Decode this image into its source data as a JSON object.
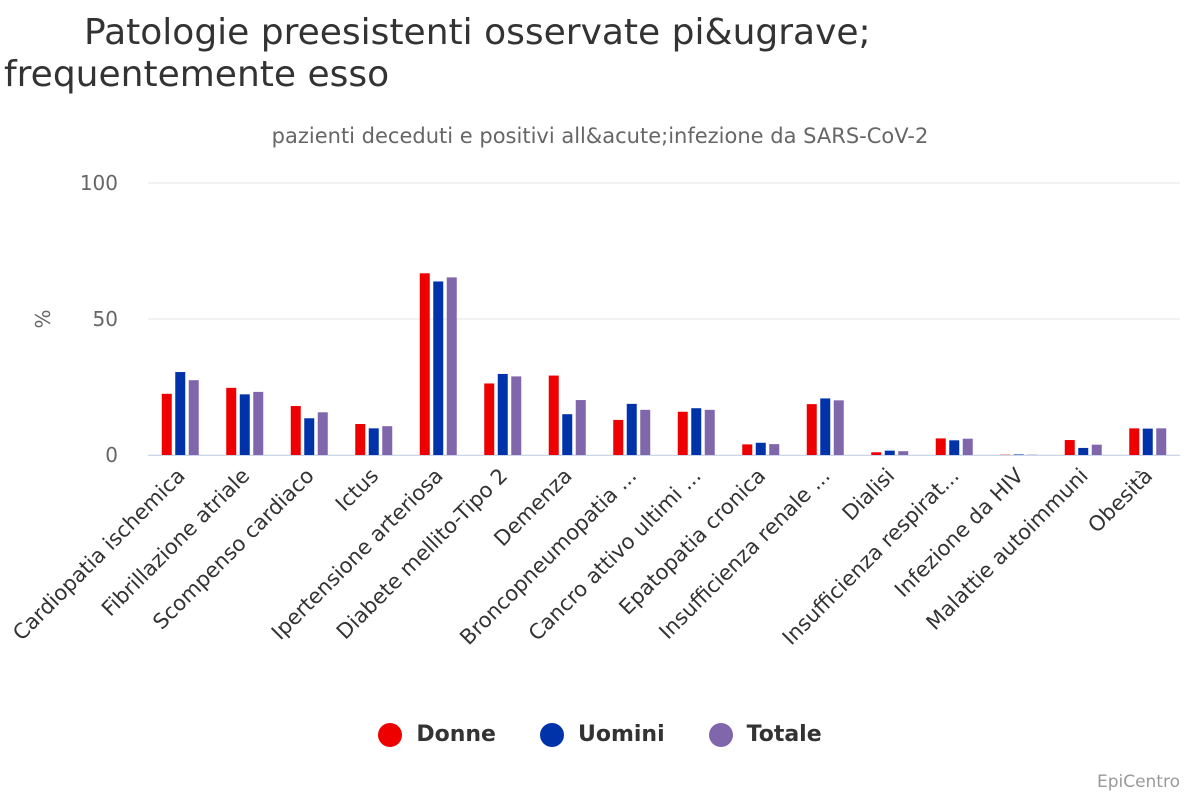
{
  "title": "Patologie preesistenti osservate pi&ugrave; frequentemente esso",
  "subtitle": "pazienti deceduti e positivi all&acute;infezione da SARS-CoV-2",
  "credits": "EpiCentro",
  "colors": {
    "donne": "#ee0000",
    "uomini": "#0033aa",
    "totale": "#8066aa",
    "grid": "#e6e6e6",
    "axis": "#666666"
  },
  "chart_data": {
    "type": "bar",
    "title": "Patologie preesistenti osservate pi&ugrave; frequentemente esso",
    "subtitle": "pazienti deceduti e positivi all&acute;infezione da SARS-CoV-2",
    "ylabel": "%",
    "xlabel": "",
    "ylim": [
      0,
      100
    ],
    "yticks": [
      0,
      50,
      100
    ],
    "grid": true,
    "legend_position": "bottom-center",
    "categories": [
      "Cardiopatia ischemica",
      "Fibrillazione atriale",
      "Scompenso cardiaco",
      "Ictus",
      "Ipertensione arteriosa",
      "Diabete mellito-Tipo 2",
      "Demenza",
      "Broncopneumopatia ...",
      "Cancro attivo ultimi ...",
      "Epatopatia cronica",
      "Insufficienza renale ...",
      "Dialisi",
      "Insufficienza respirat...",
      "Infezione da HIV",
      "Malattie autoimmuni",
      "Obesità"
    ],
    "series": [
      {
        "name": "Donne",
        "color": "#ee0000",
        "values": [
          22.5,
          24.7,
          18.0,
          11.4,
          66.8,
          26.3,
          29.2,
          12.9,
          15.9,
          3.9,
          18.7,
          1.0,
          6.1,
          0.1,
          5.5,
          9.8
        ]
      },
      {
        "name": "Uomini",
        "color": "#0033aa",
        "values": [
          30.5,
          22.3,
          13.5,
          9.8,
          63.8,
          29.8,
          15.0,
          18.8,
          17.2,
          4.5,
          20.8,
          1.6,
          5.4,
          0.2,
          2.6,
          9.7
        ]
      },
      {
        "name": "Totale",
        "color": "#8066aa",
        "values": [
          27.5,
          23.2,
          15.7,
          10.6,
          65.3,
          28.9,
          20.2,
          16.6,
          16.6,
          4.0,
          20.1,
          1.4,
          6.0,
          0.1,
          3.8,
          9.8
        ]
      }
    ]
  }
}
